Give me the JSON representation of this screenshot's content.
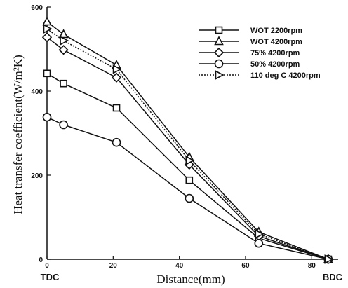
{
  "chart_data": {
    "type": "line",
    "xlabel": "Distance(mm)",
    "ylabel": "Heat transfer coefficient(W/m²K)",
    "xlim": [
      0,
      88
    ],
    "ylim": [
      0,
      600
    ],
    "xticks": [
      0,
      20,
      40,
      60,
      80
    ],
    "yticks": [
      0,
      200,
      400,
      600
    ],
    "xtick_labels": [
      "0",
      "20",
      "40",
      "60",
      "80"
    ],
    "ytick_labels": [
      "0",
      "200",
      "400",
      "600"
    ],
    "x_end_labels": {
      "left": "TDC",
      "right": "BDC"
    },
    "legend_position": "top-right",
    "grid": false,
    "series": [
      {
        "name": "WOT 2200rpm",
        "marker": "square",
        "linestyle": "solid",
        "x": [
          0,
          5,
          21,
          43,
          64,
          85
        ],
        "y": [
          442,
          418,
          360,
          188,
          50,
          0
        ]
      },
      {
        "name": "WOT 4200rpm",
        "marker": "triangle",
        "linestyle": "solid",
        "x": [
          0,
          5,
          21,
          43,
          64,
          85
        ],
        "y": [
          565,
          535,
          462,
          243,
          65,
          0
        ]
      },
      {
        "name": "75%  4200rpm",
        "marker": "diamond",
        "linestyle": "solid",
        "x": [
          0,
          5,
          21,
          43,
          64,
          85
        ],
        "y": [
          528,
          498,
          432,
          225,
          55,
          0
        ]
      },
      {
        "name": "50%  4200rpm",
        "marker": "circle",
        "linestyle": "solid",
        "x": [
          0,
          5,
          21,
          43,
          64,
          85
        ],
        "y": [
          338,
          320,
          278,
          145,
          38,
          0
        ]
      },
      {
        "name": "110 deg C 4200rpm",
        "marker": "right-triangle",
        "linestyle": "dotted",
        "x": [
          0,
          5,
          21,
          43,
          64,
          85
        ],
        "y": [
          548,
          520,
          452,
          235,
          60,
          0
        ]
      }
    ]
  }
}
